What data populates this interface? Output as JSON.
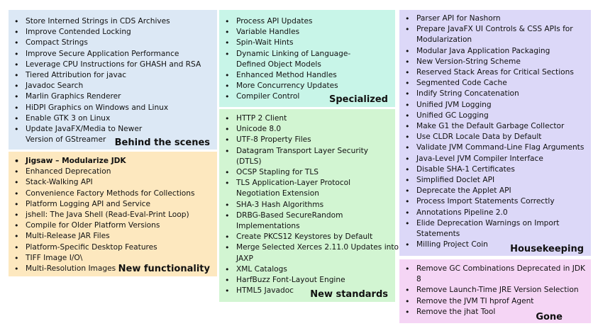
{
  "boxes": {
    "behind": {
      "title": "Behind the scenes",
      "color": "#dce8f5",
      "items": [
        "Store Interned Strings in CDS Archives",
        "Improve Contended Locking",
        "Compact Strings",
        "Improve Secure Application Performance",
        "Leverage CPU Instructions for GHASH and RSA",
        "Tiered Attribution for javac",
        "Javadoc Search",
        "Marlin Graphics Renderer",
        "HiDPI Graphics on Windows and Linux",
        "Enable GTK 3 on Linux",
        "Update JavaFX/Media to Newer Version of GStreamer"
      ]
    },
    "newfunc": {
      "title": "New functionality",
      "color": "#fde8bf",
      "items": [
        "Jigsaw – Modularize JDK",
        "Enhanced Deprecation",
        "Stack-Walking API",
        "Convenience Factory Methods for Collections",
        "Platform Logging API and Service",
        "jshell: The Java Shell (Read-Eval-Print Loop)",
        "Compile for Older Platform Versions",
        "Multi-Release JAR Files",
        "Platform-Specific Desktop Features",
        "TIFF Image I/O\\",
        "Multi-Resolution Images"
      ]
    },
    "specialized": {
      "title": "Specialized",
      "color": "#c8f5e8",
      "items": [
        "Process API Updates",
        "Variable Handles",
        "Spin-Wait Hints",
        "Dynamic Linking of Language-Defined Object Models",
        "Enhanced Method Handles",
        "More Concurrency Updates",
        "Compiler Control"
      ]
    },
    "standards": {
      "title": "New standards",
      "color": "#d2f5d2",
      "items": [
        "HTTP 2 Client",
        "Unicode 8.0",
        "UTF-8 Property Files",
        "Datagram Transport Layer Security (DTLS)",
        "OCSP Stapling for TLS",
        "TLS Application-Layer Protocol Negotiation Extension",
        "SHA-3 Hash Algorithms",
        "DRBG-Based SecureRandom Implementations",
        "Create PKCS12 Keystores by Default",
        "Merge Selected Xerces 2.11.0 Updates into JAXP",
        "XML Catalogs",
        "HarfBuzz Font-Layout Engine",
        "HTML5 Javadoc"
      ]
    },
    "housekeeping": {
      "title": "Housekeeping",
      "color": "#dcd8f8",
      "items": [
        "Parser API for Nashorn",
        "Prepare JavaFX UI Controls & CSS APIs for Modularization",
        "Modular Java Application Packaging",
        "New Version-String Scheme",
        "Reserved Stack Areas for Critical Sections",
        "Segmented Code Cache",
        "Indify String Concatenation",
        "Unified JVM Logging",
        "Unified GC Logging",
        "Make G1 the Default Garbage Collector",
        "Use CLDR Locale Data by Default",
        "Validate JVM Command-Line Flag Arguments",
        "Java-Level JVM Compiler Interface",
        "Disable SHA-1 Certificates",
        "Simplified Doclet API",
        "Deprecate the Applet API",
        "Process Import Statements Correctly",
        "Annotations Pipeline 2.0",
        "Elide Deprecation Warnings on Import Statements",
        "Milling Project Coin"
      ]
    },
    "gone": {
      "title": "Gone",
      "color": "#f5d5f5",
      "items": [
        "Remove GC Combinations Deprecated in JDK 8",
        "Remove Launch-Time JRE Version Selection",
        "Remove the JVM TI hprof Agent",
        "Remove the jhat Tool"
      ]
    }
  }
}
